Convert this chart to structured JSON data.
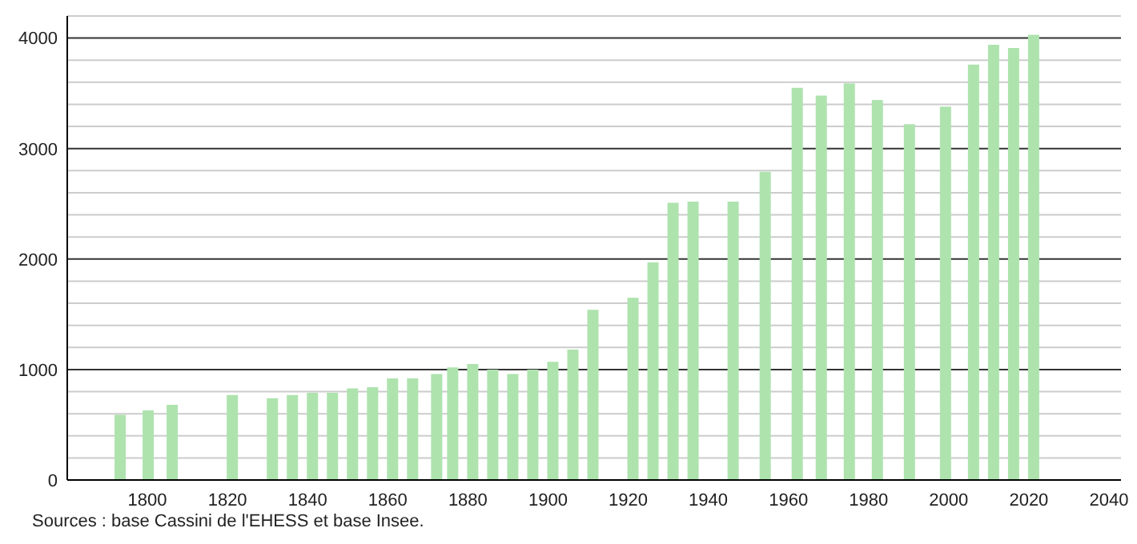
{
  "chart_data": {
    "type": "bar",
    "x": [
      1793,
      1800,
      1806,
      1821,
      1831,
      1836,
      1841,
      1846,
      1851,
      1856,
      1861,
      1866,
      1872,
      1876,
      1881,
      1886,
      1891,
      1896,
      1901,
      1906,
      1911,
      1921,
      1926,
      1931,
      1936,
      1946,
      1954,
      1962,
      1968,
      1975,
      1982,
      1990,
      1999,
      2006,
      2011,
      2016,
      2021
    ],
    "values": [
      590,
      630,
      680,
      770,
      740,
      770,
      790,
      790,
      830,
      840,
      920,
      920,
      960,
      1020,
      1050,
      1000,
      960,
      1000,
      1070,
      1180,
      1540,
      1650,
      1970,
      2510,
      2520,
      2520,
      2790,
      3550,
      3480,
      3590,
      3440,
      3220,
      3380,
      3760,
      3940,
      3910,
      4030
    ],
    "color": "#aee3ae",
    "xlim": [
      1780,
      2043
    ],
    "xticks": [
      1800,
      1820,
      1840,
      1860,
      1880,
      1900,
      1920,
      1940,
      1960,
      1980,
      2000,
      2020,
      2040
    ],
    "ylim": [
      0,
      4200
    ],
    "yticks": [
      0,
      {
        "value": 200,
        "label": null
      },
      {
        "value": 400,
        "label": null
      },
      {
        "value": 600,
        "label": null
      },
      {
        "value": 800,
        "label": null
      },
      1000,
      {
        "value": 1200,
        "label": null
      },
      {
        "value": 1400,
        "label": null
      },
      {
        "value": 1600,
        "label": null
      },
      {
        "value": 1800,
        "label": null
      },
      2000,
      {
        "value": 2200,
        "label": null
      },
      {
        "value": 2400,
        "label": null
      },
      {
        "value": 2600,
        "label": null
      },
      {
        "value": 2800,
        "label": null
      },
      3000,
      {
        "value": 3200,
        "label": null
      },
      {
        "value": 3400,
        "label": null
      },
      {
        "value": 3600,
        "label": null
      },
      {
        "value": 3800,
        "label": null
      },
      4000,
      {
        "value": 4200,
        "label": null
      }
    ],
    "grid": "y",
    "annotations": [
      "Sources : base Cassini de l'EHESS et base Insee."
    ]
  }
}
